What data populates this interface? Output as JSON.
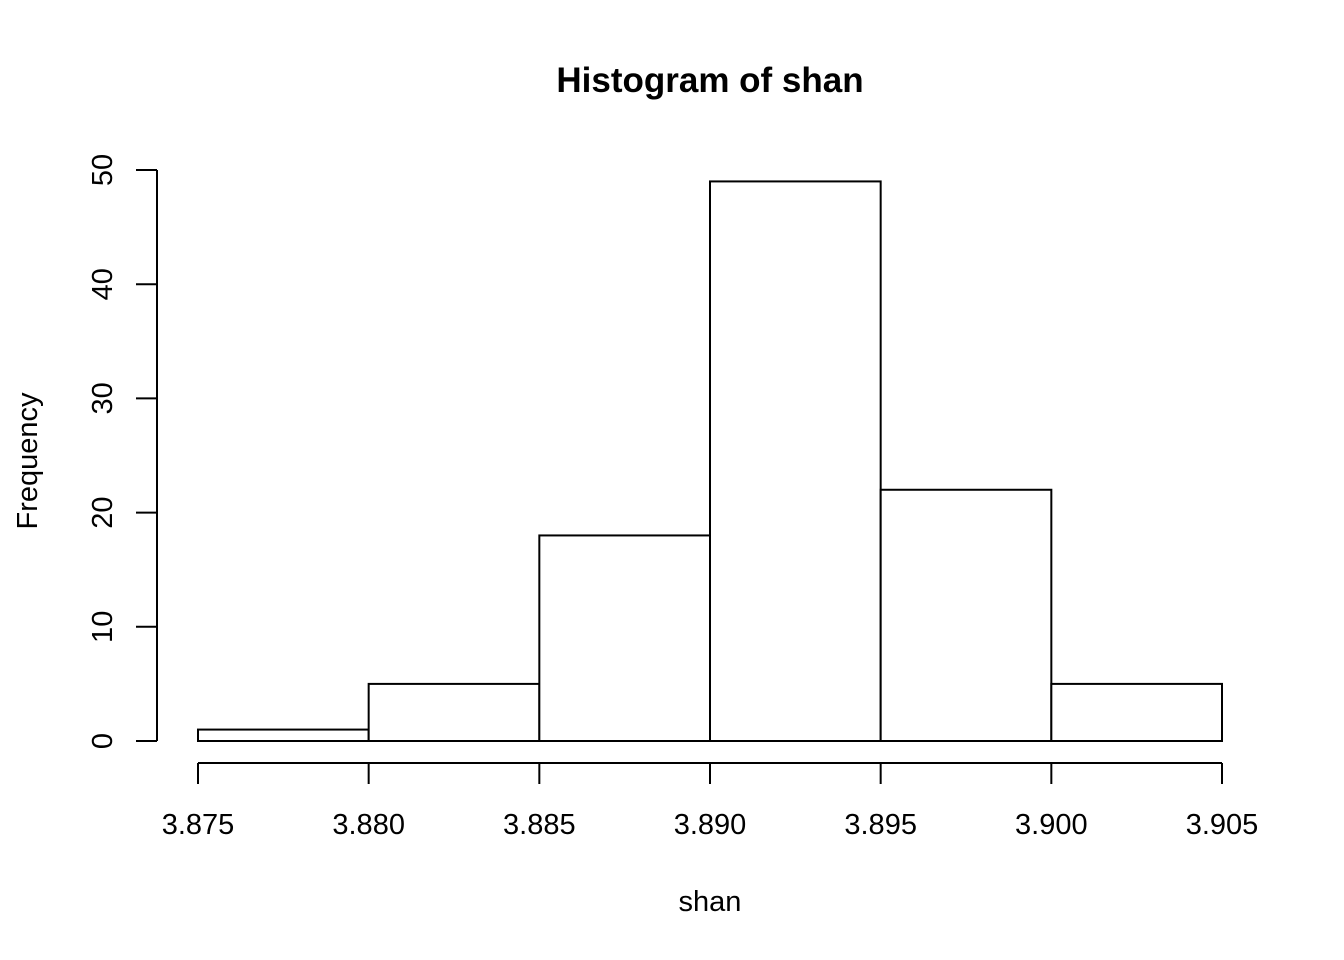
{
  "chart_data": {
    "type": "bar",
    "title": "Histogram of shan",
    "xlabel": "shan",
    "ylabel": "Frequency",
    "bin_edges": [
      3.875,
      3.88,
      3.885,
      3.89,
      3.895,
      3.9,
      3.905
    ],
    "values": [
      1,
      5,
      18,
      49,
      22,
      5
    ],
    "x_ticks": [
      "3.875",
      "3.880",
      "3.885",
      "3.890",
      "3.895",
      "3.900",
      "3.905"
    ],
    "y_ticks": [
      "0",
      "10",
      "20",
      "30",
      "40",
      "50"
    ],
    "xlim": [
      3.875,
      3.905
    ],
    "ylim": [
      0,
      50
    ],
    "grid": false,
    "legend": "none",
    "bar_fill": "#ffffff",
    "bar_stroke": "#000000"
  }
}
